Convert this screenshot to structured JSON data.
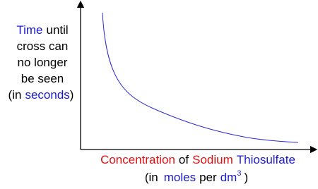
{
  "y_axis_label": {
    "line1": [
      "Time",
      "until"
    ],
    "line2": "cross can",
    "line3": "no longer",
    "line4": "be seen",
    "line5": [
      "(in",
      "seconds",
      ")"
    ]
  },
  "x_axis_label": {
    "line1": [
      "Concentration",
      "of",
      "Sodium",
      "Thiosulfate"
    ],
    "line2": [
      "(in",
      "moles",
      "per",
      "dm",
      "3",
      ")"
    ]
  }
}
